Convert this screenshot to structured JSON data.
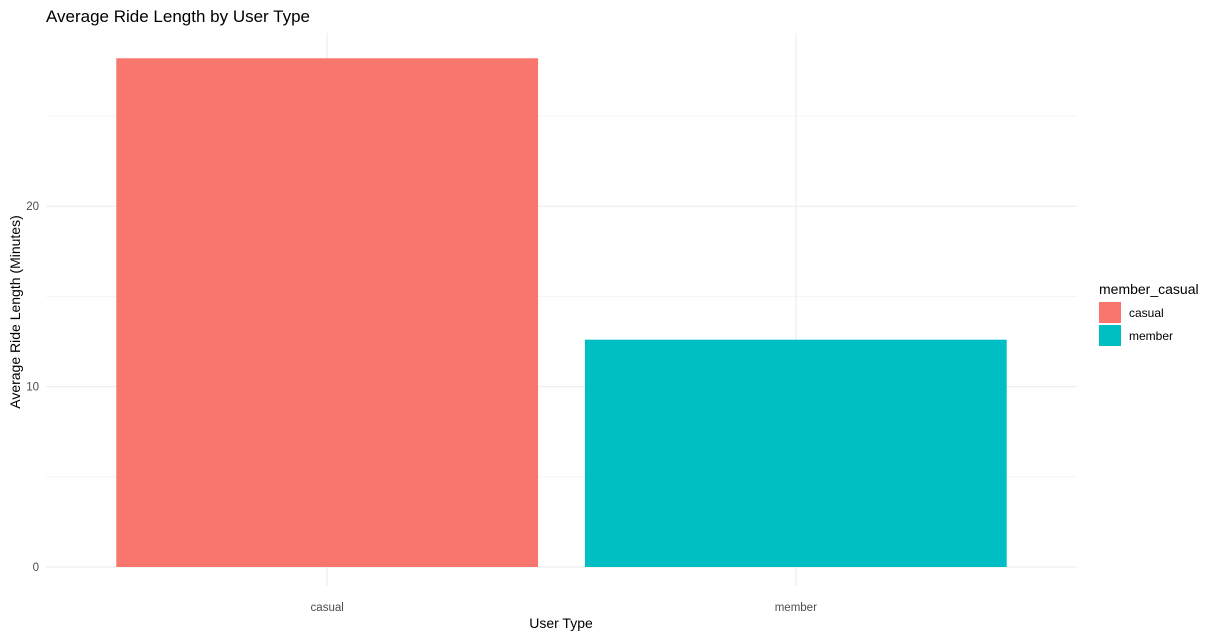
{
  "chart_data": {
    "type": "bar",
    "title": "Average Ride Length by User Type",
    "xlabel": "User Type",
    "ylabel": "Average Ride Length (Minutes)",
    "categories": [
      "casual",
      "member"
    ],
    "values": [
      28.2,
      12.6
    ],
    "colors": [
      "#F8766D",
      "#00BFC4"
    ],
    "ylim": [
      0,
      29.6
    ],
    "yticks": [
      0,
      10,
      20
    ],
    "grid": true,
    "legend": {
      "title": "member_casual",
      "position": "right",
      "entries": [
        {
          "label": "casual",
          "color": "#F8766D"
        },
        {
          "label": "member",
          "color": "#00BFC4"
        }
      ]
    }
  }
}
